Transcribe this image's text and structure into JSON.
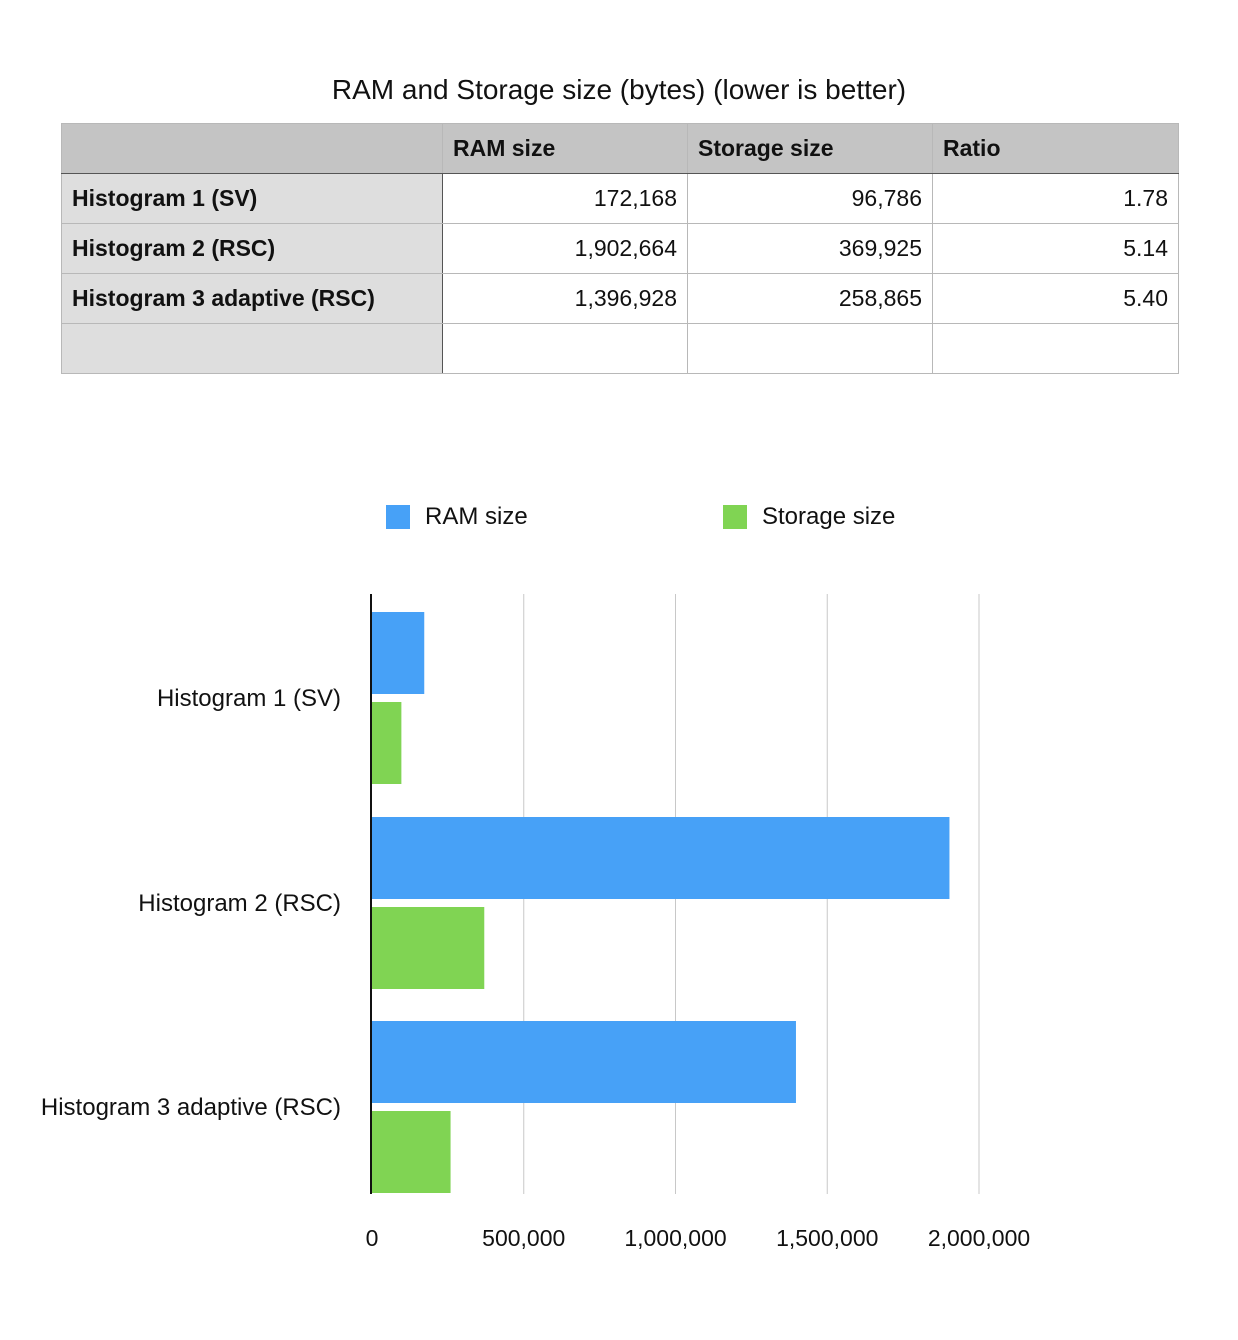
{
  "title": "RAM and Storage size (bytes) (lower is better)",
  "table": {
    "headers": [
      "",
      "RAM size",
      "Storage size",
      "Ratio"
    ],
    "rows": [
      {
        "label": "Histogram 1 (SV)",
        "ram": "172,168",
        "storage": "96,786",
        "ratio": "1.78"
      },
      {
        "label": "Histogram 2 (RSC)",
        "ram": "1,902,664",
        "storage": "369,925",
        "ratio": "5.14"
      },
      {
        "label": "Histogram 3 adaptive (RSC)",
        "ram": "1,396,928",
        "storage": "258,865",
        "ratio": "5.40"
      },
      {
        "label": "",
        "ram": "",
        "storage": "",
        "ratio": ""
      }
    ]
  },
  "chart_data": {
    "type": "bar",
    "orientation": "horizontal",
    "categories": [
      "Histogram 1 (SV)",
      "Histogram 2 (RSC)",
      "Histogram 3 adaptive (RSC)"
    ],
    "series": [
      {
        "name": "RAM size",
        "color": "#47a1f7",
        "values": [
          172168,
          1902664,
          1396928
        ]
      },
      {
        "name": "Storage size",
        "color": "#80d453",
        "values": [
          96786,
          369925,
          258865
        ]
      }
    ],
    "xlim": [
      0,
      2000000
    ],
    "xticks": [
      0,
      500000,
      1000000,
      1500000,
      2000000
    ],
    "xtick_labels": [
      "0",
      "500,000",
      "1,000,000",
      "1,500,000",
      "2,000,000"
    ],
    "grid": true,
    "legend_position": "top"
  }
}
